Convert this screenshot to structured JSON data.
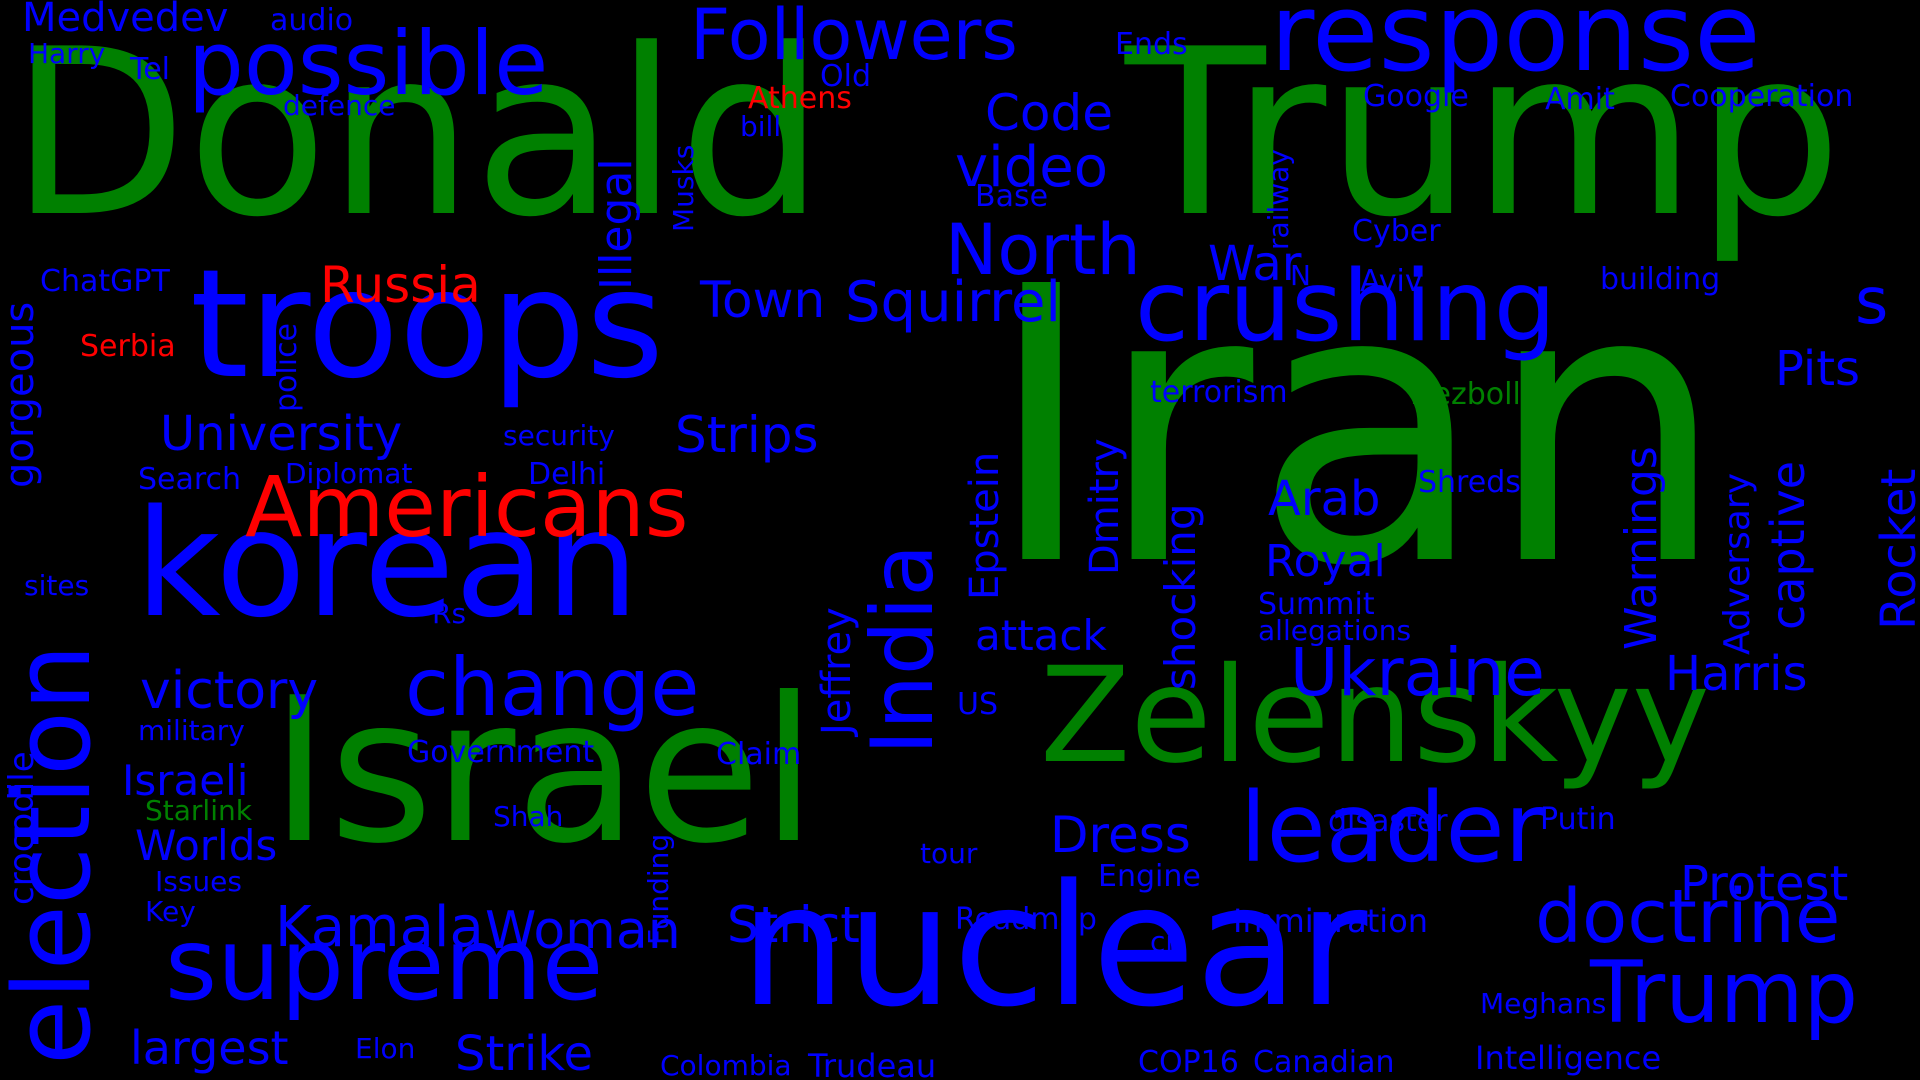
{
  "colors": {
    "background": "#000000",
    "blue": "#0000ff",
    "green": "#008000",
    "red": "#ff0000"
  },
  "words": [
    {
      "text": "Iran",
      "color": "green",
      "orientation": "horizontal"
    },
    {
      "text": "Donald",
      "color": "green",
      "orientation": "horizontal"
    },
    {
      "text": "Trump",
      "color": "green",
      "orientation": "horizontal"
    },
    {
      "text": "Israel",
      "color": "green",
      "orientation": "horizontal"
    },
    {
      "text": "Zelenskyy",
      "color": "green",
      "orientation": "horizontal"
    },
    {
      "text": "nuclear",
      "color": "blue",
      "orientation": "horizontal"
    },
    {
      "text": "korean",
      "color": "blue",
      "orientation": "horizontal"
    },
    {
      "text": "troops",
      "color": "blue",
      "orientation": "horizontal"
    },
    {
      "text": "election",
      "color": "blue",
      "orientation": "vertical"
    },
    {
      "text": "response",
      "color": "blue",
      "orientation": "horizontal"
    },
    {
      "text": "supreme",
      "color": "blue",
      "orientation": "horizontal"
    },
    {
      "text": "crushing",
      "color": "blue",
      "orientation": "horizontal"
    },
    {
      "text": "leader",
      "color": "blue",
      "orientation": "horizontal"
    },
    {
      "text": "possible",
      "color": "blue",
      "orientation": "horizontal"
    },
    {
      "text": "change",
      "color": "blue",
      "orientation": "horizontal"
    },
    {
      "text": "India",
      "color": "blue",
      "orientation": "vertical"
    },
    {
      "text": "Trump",
      "color": "blue",
      "orientation": "horizontal"
    },
    {
      "text": "doctrine",
      "color": "blue",
      "orientation": "horizontal"
    },
    {
      "text": "Americans",
      "color": "red",
      "orientation": "horizontal"
    },
    {
      "text": "Ukraine",
      "color": "blue",
      "orientation": "horizontal"
    },
    {
      "text": "Followers",
      "color": "blue",
      "orientation": "horizontal"
    },
    {
      "text": "North",
      "color": "blue",
      "orientation": "horizontal"
    },
    {
      "text": "video",
      "color": "blue",
      "orientation": "horizontal"
    },
    {
      "text": "University",
      "color": "blue",
      "orientation": "horizontal"
    },
    {
      "text": "victory",
      "color": "blue",
      "orientation": "horizontal"
    },
    {
      "text": "Squirrel",
      "color": "blue",
      "orientation": "horizontal"
    },
    {
      "text": "Harris",
      "color": "blue",
      "orientation": "horizontal"
    },
    {
      "text": "Protest",
      "color": "blue",
      "orientation": "horizontal"
    },
    {
      "text": "Kamala",
      "color": "blue",
      "orientation": "horizontal"
    },
    {
      "text": "Woman",
      "color": "blue",
      "orientation": "horizontal"
    },
    {
      "text": "Strict",
      "color": "blue",
      "orientation": "horizontal"
    },
    {
      "text": "Dress",
      "color": "blue",
      "orientation": "horizontal"
    },
    {
      "text": "Strips",
      "color": "blue",
      "orientation": "horizontal"
    },
    {
      "text": "Town",
      "color": "blue",
      "orientation": "horizontal"
    },
    {
      "text": "Code",
      "color": "blue",
      "orientation": "horizontal"
    },
    {
      "text": "Russia",
      "color": "red",
      "orientation": "horizontal"
    },
    {
      "text": "Strike",
      "color": "blue",
      "orientation": "horizontal"
    },
    {
      "text": "largest",
      "color": "blue",
      "orientation": "horizontal"
    },
    {
      "text": "Worlds",
      "color": "blue",
      "orientation": "horizontal"
    },
    {
      "text": "Israeli",
      "color": "blue",
      "orientation": "horizontal"
    },
    {
      "text": "attack",
      "color": "blue",
      "orientation": "horizontal"
    },
    {
      "text": "Arab",
      "color": "blue",
      "orientation": "horizontal"
    },
    {
      "text": "Royal",
      "color": "blue",
      "orientation": "horizontal"
    },
    {
      "text": "Pits",
      "color": "blue",
      "orientation": "horizontal"
    },
    {
      "text": "War",
      "color": "blue",
      "orientation": "horizontal"
    },
    {
      "text": "s",
      "color": "blue",
      "orientation": "horizontal"
    },
    {
      "text": "Illegal",
      "color": "blue",
      "orientation": "vertical"
    },
    {
      "text": "Epstein",
      "color": "blue",
      "orientation": "vertical"
    },
    {
      "text": "Jeffrey",
      "color": "blue",
      "orientation": "vertical"
    },
    {
      "text": "Dmitry",
      "color": "blue",
      "orientation": "vertical"
    },
    {
      "text": "shocking",
      "color": "blue",
      "orientation": "vertical"
    },
    {
      "text": "Warnings",
      "color": "blue",
      "orientation": "vertical"
    },
    {
      "text": "Rocket",
      "color": "blue",
      "orientation": "vertical"
    },
    {
      "text": "captive",
      "color": "blue",
      "orientation": "vertical"
    },
    {
      "text": "Adversary",
      "color": "blue",
      "orientation": "vertical"
    },
    {
      "text": "gorgeous",
      "color": "blue",
      "orientation": "vertical"
    },
    {
      "text": "crocodile",
      "color": "blue",
      "orientation": "vertical"
    },
    {
      "text": "Funding",
      "color": "blue",
      "orientation": "vertical"
    },
    {
      "text": "Musks",
      "color": "blue",
      "orientation": "vertical"
    },
    {
      "text": "police",
      "color": "blue",
      "orientation": "vertical"
    },
    {
      "text": "railway",
      "color": "blue",
      "orientation": "vertical"
    },
    {
      "text": "Medvedev",
      "color": "blue",
      "orientation": "horizontal"
    },
    {
      "text": "audio",
      "color": "blue",
      "orientation": "horizontal"
    },
    {
      "text": "Harry",
      "color": "blue",
      "orientation": "horizontal"
    },
    {
      "text": "Tel",
      "color": "blue",
      "orientation": "horizontal"
    },
    {
      "text": "defence",
      "color": "blue",
      "orientation": "horizontal"
    },
    {
      "text": "Old",
      "color": "blue",
      "orientation": "horizontal"
    },
    {
      "text": "Athens",
      "color": "red",
      "orientation": "horizontal"
    },
    {
      "text": "bill",
      "color": "blue",
      "orientation": "horizontal"
    },
    {
      "text": "Ends",
      "color": "blue",
      "orientation": "horizontal"
    },
    {
      "text": "Google",
      "color": "blue",
      "orientation": "horizontal"
    },
    {
      "text": "Amit",
      "color": "blue",
      "orientation": "horizontal"
    },
    {
      "text": "Cooperation",
      "color": "blue",
      "orientation": "horizontal"
    },
    {
      "text": "Base",
      "color": "blue",
      "orientation": "horizontal"
    },
    {
      "text": "Cyber",
      "color": "blue",
      "orientation": "horizontal"
    },
    {
      "text": "N",
      "color": "blue",
      "orientation": "horizontal"
    },
    {
      "text": "Aviv",
      "color": "blue",
      "orientation": "horizontal"
    },
    {
      "text": "building",
      "color": "blue",
      "orientation": "horizontal"
    },
    {
      "text": "ChatGPT",
      "color": "blue",
      "orientation": "horizontal"
    },
    {
      "text": "Serbia",
      "color": "red",
      "orientation": "horizontal"
    },
    {
      "text": "terrorism",
      "color": "blue",
      "orientation": "horizontal"
    },
    {
      "text": "Hezbollah",
      "color": "green",
      "orientation": "horizontal"
    },
    {
      "text": "security",
      "color": "blue",
      "orientation": "horizontal"
    },
    {
      "text": "Search",
      "color": "blue",
      "orientation": "horizontal"
    },
    {
      "text": "Diplomat",
      "color": "blue",
      "orientation": "horizontal"
    },
    {
      "text": "Delhi",
      "color": "blue",
      "orientation": "horizontal"
    },
    {
      "text": "Shreds",
      "color": "blue",
      "orientation": "horizontal"
    },
    {
      "text": "sites",
      "color": "blue",
      "orientation": "horizontal"
    },
    {
      "text": "Rs",
      "color": "blue",
      "orientation": "horizontal"
    },
    {
      "text": "Summit",
      "color": "blue",
      "orientation": "horizontal"
    },
    {
      "text": "allegations",
      "color": "blue",
      "orientation": "horizontal"
    },
    {
      "text": "US",
      "color": "blue",
      "orientation": "horizontal"
    },
    {
      "text": "military",
      "color": "blue",
      "orientation": "horizontal"
    },
    {
      "text": "Government",
      "color": "blue",
      "orientation": "horizontal"
    },
    {
      "text": "Claim",
      "color": "blue",
      "orientation": "horizontal"
    },
    {
      "text": "Starlink",
      "color": "green",
      "orientation": "horizontal"
    },
    {
      "text": "Shah",
      "color": "blue",
      "orientation": "horizontal"
    },
    {
      "text": "disaster",
      "color": "blue",
      "orientation": "horizontal"
    },
    {
      "text": "Putin",
      "color": "blue",
      "orientation": "horizontal"
    },
    {
      "text": "tour",
      "color": "blue",
      "orientation": "horizontal"
    },
    {
      "text": "Engine",
      "color": "blue",
      "orientation": "horizontal"
    },
    {
      "text": "Issues",
      "color": "blue",
      "orientation": "horizontal"
    },
    {
      "text": "Key",
      "color": "blue",
      "orientation": "horizontal"
    },
    {
      "text": "Roadmap",
      "color": "blue",
      "orientation": "horizontal"
    },
    {
      "text": "Immigration",
      "color": "blue",
      "orientation": "horizontal"
    },
    {
      "text": "cr",
      "color": "blue",
      "orientation": "horizontal"
    },
    {
      "text": "Meghans",
      "color": "blue",
      "orientation": "horizontal"
    },
    {
      "text": "Elon",
      "color": "blue",
      "orientation": "horizontal"
    },
    {
      "text": "Colombia",
      "color": "blue",
      "orientation": "horizontal"
    },
    {
      "text": "Trudeau",
      "color": "blue",
      "orientation": "horizontal"
    },
    {
      "text": "COP16",
      "color": "blue",
      "orientation": "horizontal"
    },
    {
      "text": "Canadian",
      "color": "blue",
      "orientation": "horizontal"
    },
    {
      "text": "Intelligence",
      "color": "blue",
      "orientation": "horizontal"
    }
  ]
}
